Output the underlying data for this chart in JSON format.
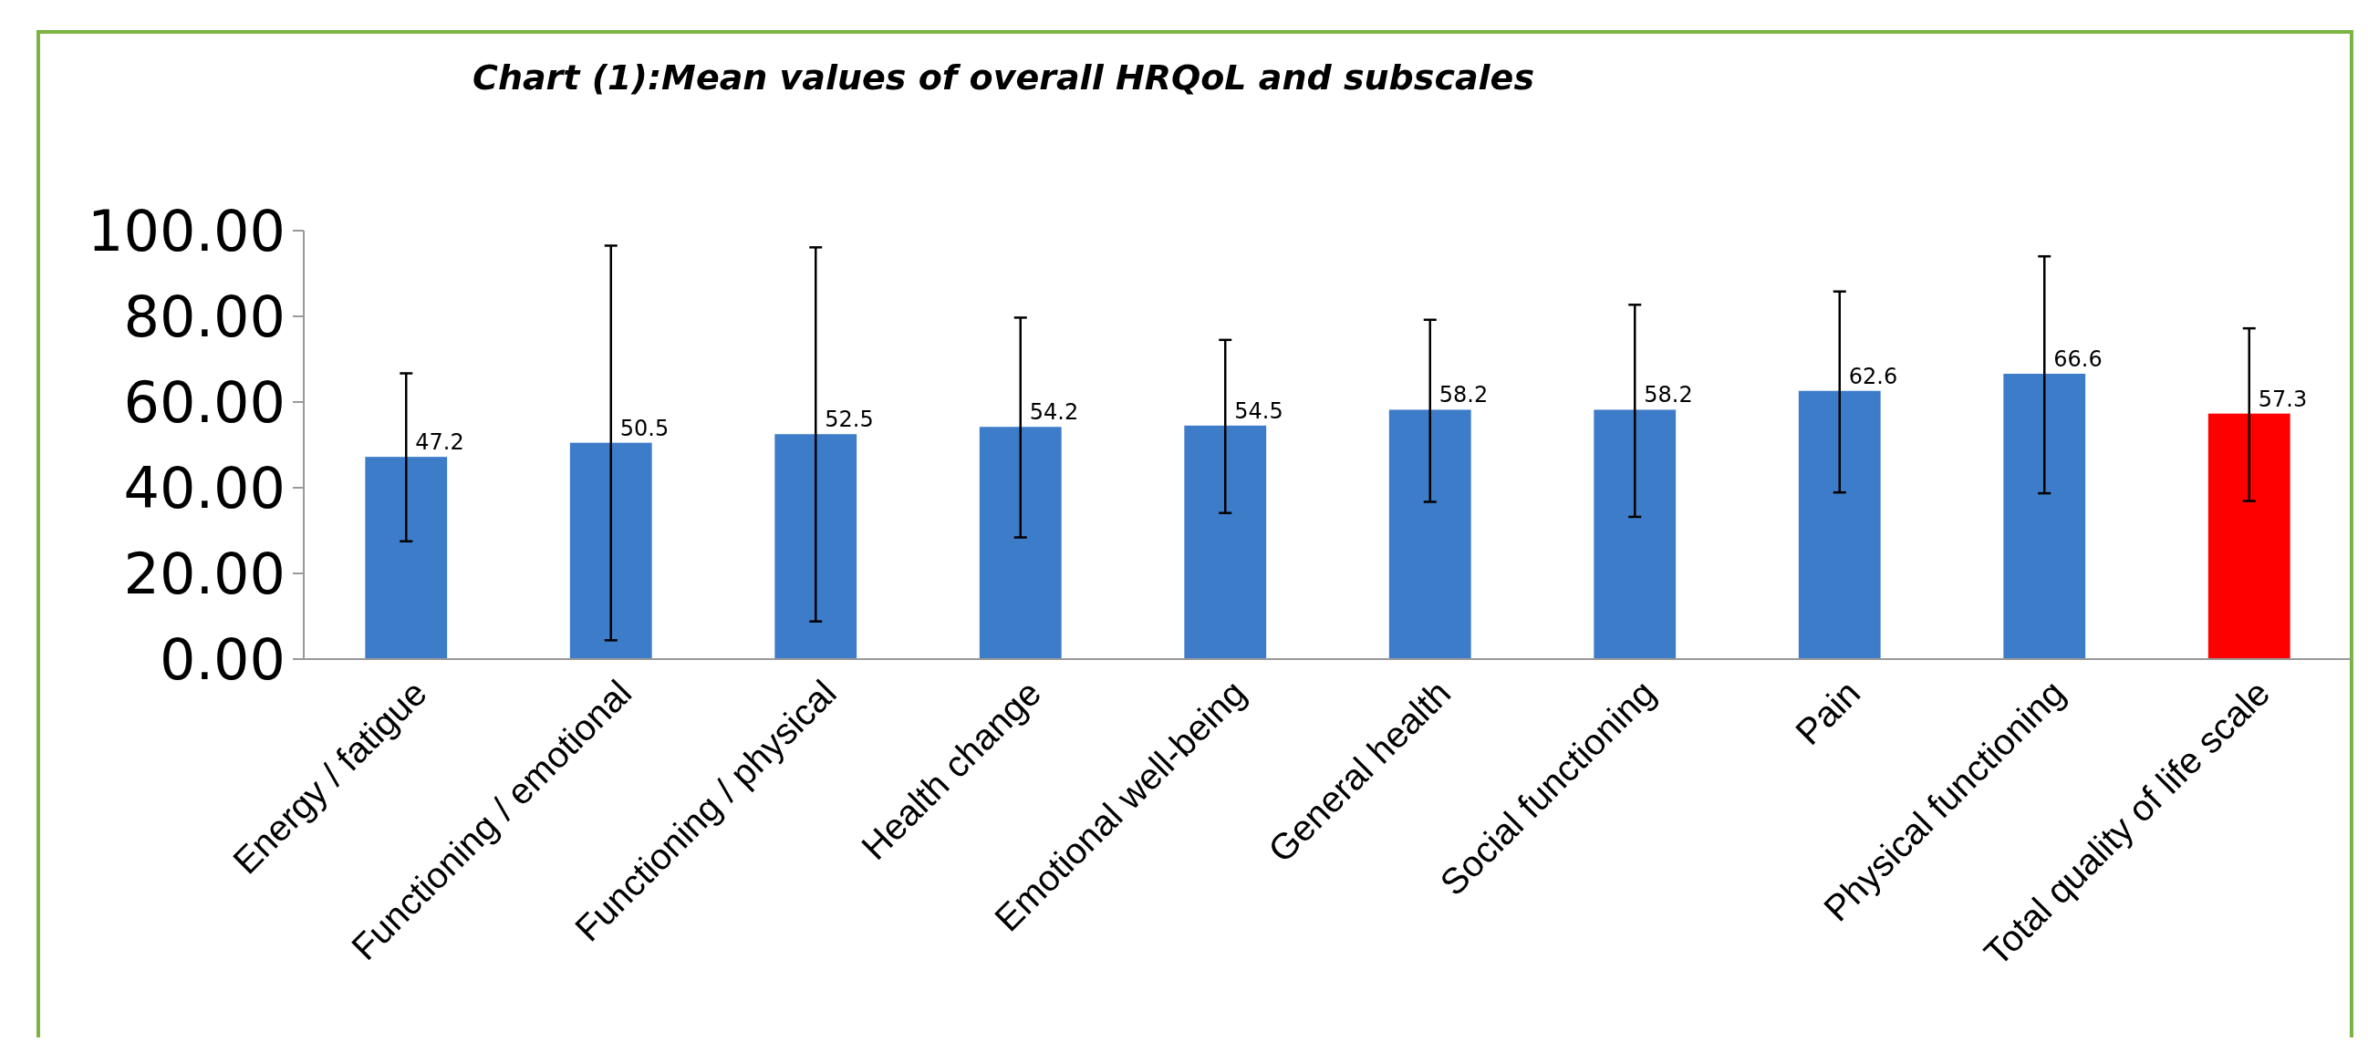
{
  "chart_data": {
    "type": "bar",
    "title": "Chart (1):Mean values of overall HRQoL and subscales",
    "categories": [
      "Energy / fatigue",
      "Functioning / emotional",
      "Functioning / physical",
      "Health change",
      "Emotional well-being",
      "General health",
      "Social functioning",
      "Pain",
      "Physical functioning",
      "Total quality of life scale"
    ],
    "values": [
      47.2,
      50.5,
      52.5,
      54.2,
      54.5,
      58.2,
      58.2,
      62.6,
      66.6,
      57.3
    ],
    "colors": [
      "#3d7cc9",
      "#3d7cc9",
      "#3d7cc9",
      "#3d7cc9",
      "#3d7cc9",
      "#3d7cc9",
      "#3d7cc9",
      "#3d7cc9",
      "#3d7cc9",
      "#ff0000"
    ],
    "errors": [
      [
        27.5,
        66.7
      ],
      [
        4.4,
        96.5
      ],
      [
        8.8,
        96.1
      ],
      [
        28.4,
        79.7
      ],
      [
        34.1,
        74.5
      ],
      [
        36.7,
        79.2
      ],
      [
        33.2,
        82.7
      ],
      [
        38.9,
        85.8
      ],
      [
        38.7,
        94.0
      ],
      [
        36.9,
        77.2
      ]
    ],
    "ylim": [
      0,
      100
    ],
    "yticks": [
      {
        "value": 0,
        "label": "0.00"
      },
      {
        "value": 20,
        "label": "20.00"
      },
      {
        "value": 40,
        "label": "40.00"
      },
      {
        "value": 60,
        "label": "60.00"
      },
      {
        "value": 80,
        "label": "80.00"
      },
      {
        "value": 100,
        "label": "100.00"
      }
    ],
    "data_labels": true,
    "grid": false
  }
}
